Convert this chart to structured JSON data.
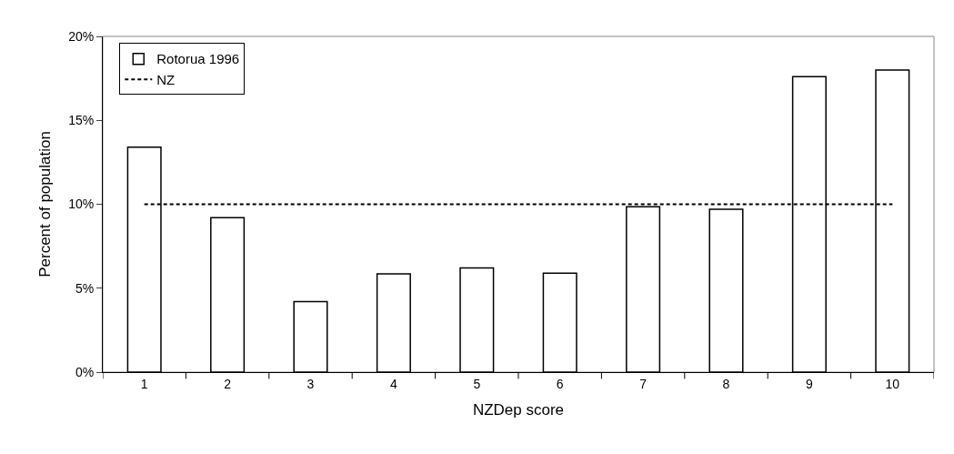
{
  "chart_data": {
    "type": "bar",
    "xlabel": "NZDep score",
    "ylabel": "Percent of population",
    "categories": [
      "1",
      "2",
      "3",
      "4",
      "5",
      "6",
      "7",
      "8",
      "9",
      "10"
    ],
    "series": [
      {
        "name": "Rotorua 1996",
        "color": "#ffffff",
        "values": [
          13.4,
          9.2,
          4.2,
          5.85,
          6.2,
          5.9,
          9.85,
          9.7,
          17.6,
          18.0
        ]
      },
      {
        "name": "NZ",
        "type": "line",
        "color": "#000000",
        "line_style": "dotted",
        "values": [
          10,
          10,
          10,
          10,
          10,
          10,
          10,
          10,
          10,
          10
        ]
      }
    ],
    "ylim": [
      0,
      20
    ],
    "yticks": [
      {
        "value": 0,
        "label": "0%"
      },
      {
        "value": 5,
        "label": "5%"
      },
      {
        "value": 10,
        "label": "10%"
      },
      {
        "value": 15,
        "label": "15%"
      },
      {
        "value": 20,
        "label": "20%"
      }
    ],
    "legend": "top left",
    "grid": false
  }
}
